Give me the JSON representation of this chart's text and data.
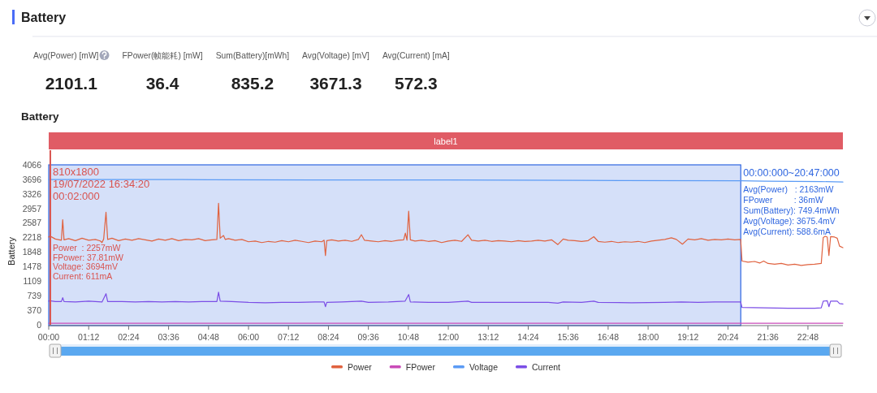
{
  "chart_data": [
    {
      "type": "other",
      "title": "Battery",
      "categories": [
        "Avg(Power) [mW]",
        "FPower(帧能耗) [mW]",
        "Sum(Battery)[mWh]",
        "Avg(Voltage) [mV]",
        "Avg(Current) [mA]"
      ],
      "values": [
        2101.1,
        36.4,
        835.2,
        3671.3,
        572.3
      ],
      "data_labels": true
    },
    {
      "type": "line",
      "title": "Battery",
      "subtitle": "label1",
      "ylabel": "Battery",
      "xlim": [
        0,
        23.85
      ],
      "xticks": [
        {
          "value": 0,
          "label": "00:00"
        },
        {
          "value": 1.2,
          "label": "01:12"
        },
        {
          "value": 2.4,
          "label": "02:24"
        },
        {
          "value": 3.6,
          "label": "03:36"
        },
        {
          "value": 4.8,
          "label": "04:48"
        },
        {
          "value": 6,
          "label": "06:00"
        },
        {
          "value": 7.2,
          "label": "07:12"
        },
        {
          "value": 8.4,
          "label": "08:24"
        },
        {
          "value": 9.6,
          "label": "09:36"
        },
        {
          "value": 10.8,
          "label": "10:48"
        },
        {
          "value": 12,
          "label": "12:00"
        },
        {
          "value": 13.2,
          "label": "13:12"
        },
        {
          "value": 14.4,
          "label": "14:24"
        },
        {
          "value": 15.6,
          "label": "15:36"
        },
        {
          "value": 16.8,
          "label": "16:48"
        },
        {
          "value": 18,
          "label": "18:00"
        },
        {
          "value": 19.2,
          "label": "19:12"
        },
        {
          "value": 20.4,
          "label": "20:24"
        },
        {
          "value": 21.6,
          "label": "21:36"
        },
        {
          "value": 22.8,
          "label": "22:48"
        }
      ],
      "ylim": [
        0,
        4066
      ],
      "yticks": [
        0,
        370,
        739,
        1109,
        1478,
        1848,
        2218,
        2587,
        2957,
        3326,
        3696,
        4066
      ],
      "grid": false,
      "legend": "bottom",
      "series": [
        {
          "name": "Power",
          "color": "#e0623f",
          "x": [
            0,
            0.033,
            0.2,
            0.38,
            0.42,
            0.46,
            0.6,
            0.8,
            1.0,
            1.2,
            1.4,
            1.55,
            1.6,
            1.65,
            1.72,
            1.77,
            1.9,
            2.1,
            2.3,
            2.5,
            2.7,
            2.9,
            3.1,
            3.3,
            3.5,
            3.7,
            3.9,
            4.1,
            4.3,
            4.5,
            4.7,
            4.9,
            5.05,
            5.1,
            5.15,
            5.25,
            5.3,
            5.4,
            5.6,
            5.8,
            6.0,
            6.2,
            6.4,
            6.6,
            6.8,
            7.0,
            7.2,
            7.4,
            7.6,
            7.8,
            8.0,
            8.2,
            8.27,
            8.31,
            8.35,
            8.5,
            8.7,
            8.9,
            9.1,
            9.3,
            9.39,
            9.48,
            9.7,
            9.9,
            10.1,
            10.3,
            10.5,
            10.66,
            10.71,
            10.76,
            10.81,
            10.86,
            11.0,
            11.2,
            11.4,
            11.6,
            11.8,
            12.0,
            12.2,
            12.4,
            12.59,
            12.7,
            12.9,
            13.1,
            13.3,
            13.5,
            13.7,
            13.9,
            14.1,
            14.3,
            14.5,
            14.7,
            14.9,
            15.1,
            15.29,
            15.45,
            15.6,
            15.8,
            16.0,
            16.2,
            16.37,
            16.5,
            16.7,
            16.9,
            17.1,
            17.3,
            17.5,
            17.7,
            17.9,
            18.1,
            18.3,
            18.5,
            18.7,
            18.85,
            19.03,
            19.2,
            19.4,
            19.6,
            19.8,
            20.0,
            20.2,
            20.4,
            20.6,
            20.78,
            20.82,
            21.0,
            21.2,
            21.35,
            21.47,
            21.6,
            21.8,
            22.0,
            22.2,
            22.4,
            22.6,
            22.8,
            23.0,
            23.2,
            23.26,
            23.32,
            23.38,
            23.43,
            23.48,
            23.6,
            23.68,
            23.75,
            23.85
          ],
          "values": [
            2230,
            2257,
            2180,
            2150,
            2670,
            2160,
            2190,
            2140,
            2200,
            2150,
            2170,
            2130,
            2090,
            2180,
            2860,
            2170,
            2200,
            2140,
            2180,
            2150,
            2190,
            2160,
            2130,
            2180,
            2150,
            2190,
            2140,
            2170,
            2160,
            2190,
            2140,
            2160,
            2170,
            3090,
            2200,
            2270,
            2170,
            2190,
            2150,
            2170,
            2110,
            2130,
            2090,
            2120,
            2100,
            2140,
            2110,
            2150,
            2120,
            2090,
            2130,
            2110,
            2150,
            1760,
            2140,
            2160,
            2130,
            2150,
            2120,
            2170,
            2290,
            2150,
            2130,
            2110,
            2140,
            2120,
            2150,
            2160,
            2330,
            2150,
            2890,
            2160,
            2130,
            2150,
            2120,
            2140,
            2090,
            2130,
            2150,
            2120,
            2290,
            2150,
            2130,
            2150,
            2120,
            2140,
            2130,
            2110,
            2140,
            2120,
            2130,
            2150,
            2130,
            2160,
            2040,
            2180,
            2150,
            2140,
            2120,
            2140,
            2240,
            2120,
            2100,
            2120,
            2090,
            2110,
            2100,
            2120,
            2090,
            2130,
            2150,
            2170,
            2210,
            2170,
            2050,
            2180,
            2160,
            2190,
            2150,
            2170,
            2160,
            2180,
            2160,
            2170,
            1620,
            1590,
            1610,
            1570,
            1620,
            1560,
            1540,
            1560,
            1520,
            1540,
            1510,
            1530,
            1540,
            1560,
            2220,
            2250,
            2230,
            1760,
            2240,
            2230,
            2200,
            2000,
            1960
          ]
        },
        {
          "name": "FPower",
          "color": "#c94bb8",
          "x": [
            0,
            0.033,
            23.85
          ],
          "values": [
            40,
            37.81,
            40
          ]
        },
        {
          "name": "Voltage",
          "color": "#5b9bf5",
          "x": [
            0,
            0.033,
            4,
            8,
            12,
            16,
            20.78,
            21.5,
            23.2,
            23.85
          ],
          "values": [
            3690,
            3694,
            3690,
            3680,
            3680,
            3670,
            3660,
            3650,
            3640,
            3630
          ]
        },
        {
          "name": "Current",
          "color": "#7b4ee6",
          "x": [
            0,
            0.033,
            0.2,
            0.38,
            0.42,
            0.46,
            0.8,
            1.2,
            1.6,
            1.72,
            1.77,
            2.2,
            2.6,
            3.0,
            3.4,
            3.8,
            4.2,
            4.6,
            5.05,
            5.1,
            5.15,
            5.5,
            6.0,
            6.5,
            7.0,
            7.5,
            8.0,
            8.27,
            8.31,
            8.35,
            8.8,
            9.39,
            9.6,
            10.2,
            10.7,
            10.81,
            10.86,
            11.4,
            12.0,
            12.59,
            12.7,
            13.4,
            14.2,
            15.0,
            15.29,
            15.45,
            16.0,
            16.37,
            16.5,
            17.5,
            18.5,
            19.0,
            19.5,
            20.0,
            20.78,
            20.82,
            21.5,
            22.2,
            23.0,
            23.2,
            23.26,
            23.38,
            23.43,
            23.48,
            23.68,
            23.75,
            23.85
          ],
          "values": [
            600,
            611,
            590,
            590,
            690,
            590,
            580,
            600,
            580,
            790,
            590,
            590,
            580,
            590,
            580,
            590,
            580,
            590,
            590,
            830,
            600,
            590,
            570,
            560,
            570,
            570,
            580,
            580,
            460,
            570,
            580,
            600,
            570,
            580,
            600,
            770,
            580,
            570,
            570,
            600,
            570,
            570,
            570,
            570,
            550,
            580,
            570,
            600,
            570,
            560,
            570,
            580,
            570,
            580,
            580,
            440,
            430,
            420,
            420,
            430,
            600,
            610,
            460,
            600,
            600,
            540,
            530
          ]
        }
      ],
      "ref_lines": [
        {
          "axis": "x",
          "value": 0.033,
          "label": "810x1800\n19/07/2022 16:34:20\n00:02:000\nPower  : 2257mW\nFPower: 37.81mW\nVoltage: 3694mV\nCurrent: 611mA",
          "color": "#d9534f"
        }
      ],
      "bands": [
        {
          "axis": "x",
          "from": 0,
          "to": 20.783,
          "label": "00:00:000~20:47:000\nAvg(Power)   : 2163mW\nFPower         : 36mW\nSum(Battery): 749.4mWh\nAvg(Voltage): 3675.4mV\nAvg(Current): 588.6mA",
          "color": "#2f66e0"
        }
      ]
    }
  ]
}
